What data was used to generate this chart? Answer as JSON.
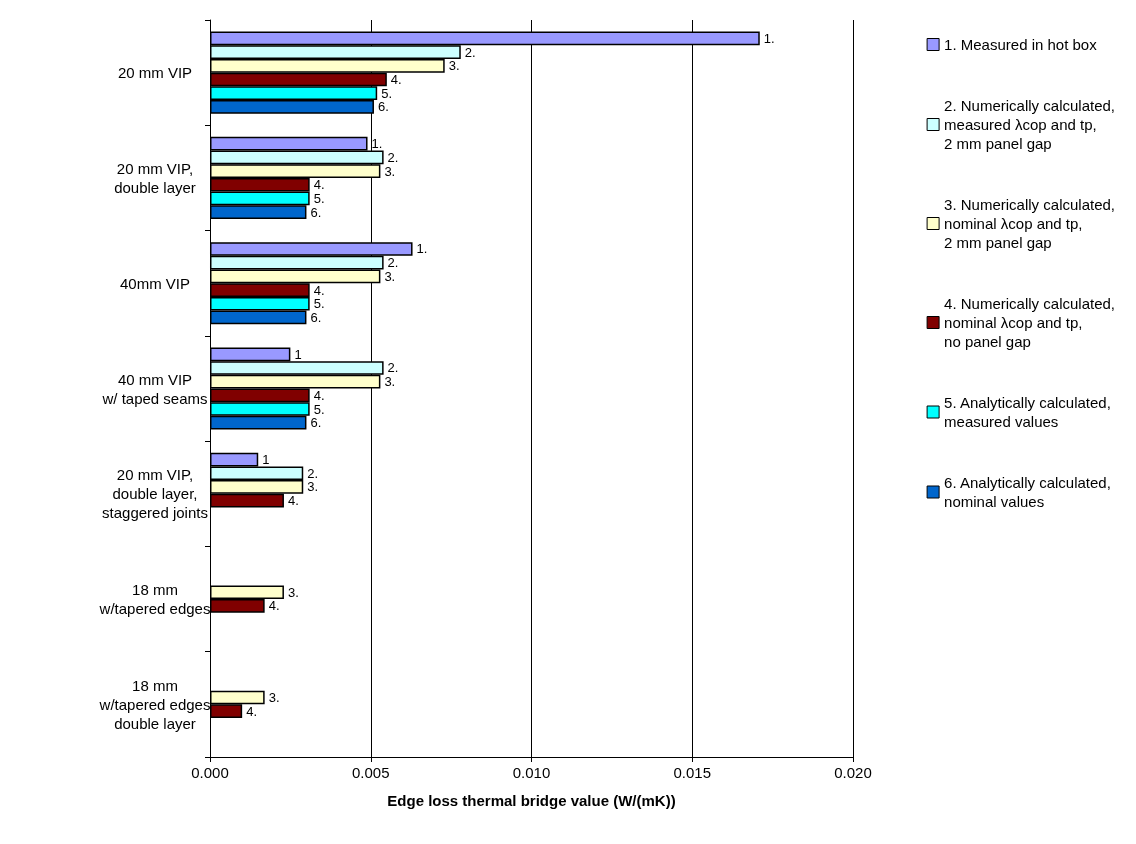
{
  "chart_data": {
    "type": "bar",
    "orientation": "horizontal",
    "xlabel": "Edge loss thermal bridge value (W/(mK))",
    "categories": [
      "20 mm VIP",
      "20 mm VIP,\ndouble layer",
      "40mm VIP",
      "40 mm VIP\nw/ taped seams",
      "20 mm VIP,\ndouble layer,\nstaggered joints",
      "18 mm\nw/tapered edges",
      "18 mm\nw/tapered edges\ndouble layer"
    ],
    "series": [
      {
        "name": "1. Measured in hot box",
        "color": "#9999ff",
        "values": [
          0.0171,
          0.0049,
          0.0063,
          0.0025,
          0.0015,
          null,
          null
        ]
      },
      {
        "name": "2. Numerically calculated,\nmeasured λcop and tp,\n2 mm panel gap",
        "color": "#ccffff",
        "values": [
          0.0078,
          0.0054,
          0.0054,
          0.0054,
          0.0029,
          null,
          null
        ]
      },
      {
        "name": "3. Numerically calculated,\nnominal λcop and tp,\n2 mm panel gap",
        "color": "#ffffcc",
        "values": [
          0.0073,
          0.0053,
          0.0053,
          0.0053,
          0.0029,
          0.0023,
          0.0017
        ]
      },
      {
        "name": "4. Numerically calculated,\nnominal λcop and tp,\nno panel gap",
        "color": "#800000",
        "values": [
          0.0055,
          0.0031,
          0.0031,
          0.0031,
          0.0023,
          0.0017,
          0.001
        ]
      },
      {
        "name": "5. Analytically calculated,\nmeasured values",
        "color": "#00ffff",
        "values": [
          0.0052,
          0.0031,
          0.0031,
          0.0031,
          null,
          null,
          null
        ]
      },
      {
        "name": "6. Analytically calculated,\nnominal values",
        "color": "#0066cc",
        "values": [
          0.0051,
          0.003,
          0.003,
          0.003,
          null,
          null,
          null
        ]
      }
    ],
    "annotations": [
      "1.",
      "2.",
      "3.",
      "4.",
      "5.",
      "6.",
      "1.",
      "2.",
      "3.",
      "4.",
      "5.",
      "6.",
      "1.",
      "2.",
      "3.",
      "4.",
      "5.",
      "6.",
      "1",
      "2.",
      "3.",
      "4.",
      "5.",
      "6.",
      "1",
      "2.",
      "3.",
      "4.",
      "3.",
      "4.",
      "3.",
      "4."
    ],
    "xlim": [
      0,
      0.02
    ],
    "xticks": [
      {
        "value": 0,
        "label": "0.000"
      },
      {
        "value": 0.005,
        "label": "0.005"
      },
      {
        "value": 0.01,
        "label": "0.010"
      },
      {
        "value": 0.015,
        "label": "0.015"
      },
      {
        "value": 0.02,
        "label": "0.020"
      }
    ],
    "grid": "x",
    "legend": "right"
  }
}
